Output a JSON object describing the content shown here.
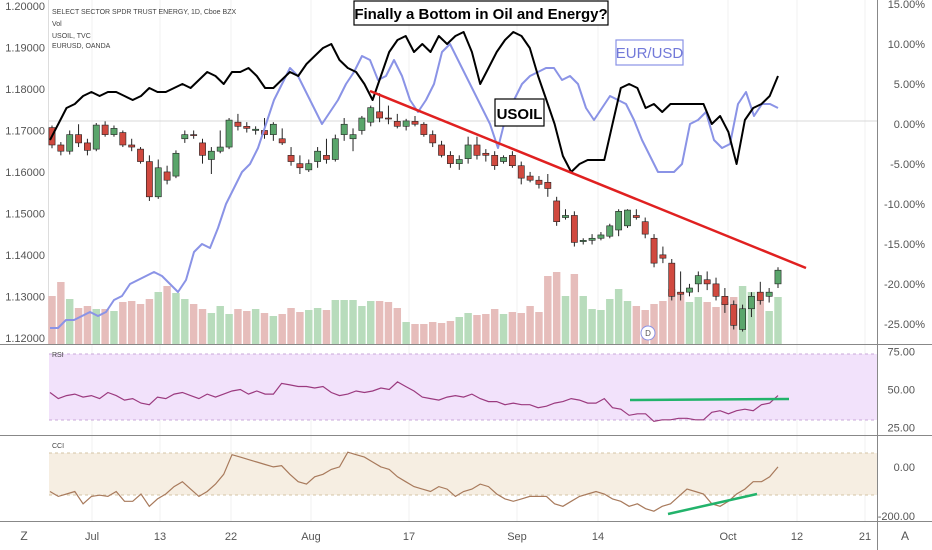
{
  "header": {
    "symbol_line": "SELECT SECTOR SPDR TRUST ENERGY, 1D, Cboe BZX",
    "vol_label": "Vol",
    "usoil_label": "USOIL, TVC",
    "eurusd_label": "EURUSD, OANDA"
  },
  "title": "Finally a Bottom in Oil and Energy?",
  "annotations": {
    "usoil": "USOIL",
    "eurusd": "EUR/USD"
  },
  "indicators": {
    "rsi_label": "RSI",
    "cci_label": "CCI"
  },
  "corner_buttons": {
    "left": "Z",
    "right": "A"
  },
  "dividend_marker": "D",
  "colors": {
    "up": "#5aa56b",
    "down": "#d0493f",
    "volume_up": "#b8dcbc",
    "volume_down": "#e6bdbb",
    "usoil": "#000000",
    "eurusd": "#8a93e6",
    "trendline": "#e02020",
    "divergence": "#22b36b",
    "rsi_line": "#9b3a7f",
    "rsi_band": "#f2e2fb",
    "cci_line": "#a87a5c",
    "cci_band": "#f6eee2"
  },
  "chart_data": {
    "type": "candlestick",
    "x_axis_labels": [
      "Jul",
      "13",
      "22",
      "Aug",
      "17",
      "Sep",
      "14",
      "Oct",
      "12",
      "21"
    ],
    "left_axis": {
      "ticks": [
        "1.20000",
        "1.19000",
        "1.18000",
        "1.17000",
        "1.16000",
        "1.15000",
        "1.14000",
        "1.13000",
        "1.12000"
      ],
      "range": [
        1.1185,
        1.2005
      ]
    },
    "right_axis": {
      "ticks": [
        "15.00%",
        "10.00%",
        "5.00%",
        "0.00%",
        "-5.00%",
        "-10.00%",
        "-15.00%",
        "-20.00%",
        "-25.00%"
      ],
      "range": [
        -27.5,
        15
      ]
    },
    "rsi_axis": {
      "ticks": [
        "75.00",
        "50.00",
        "25.00"
      ],
      "band": [
        30,
        70
      ],
      "range": [
        20,
        80
      ]
    },
    "cci_axis": {
      "ticks": [
        "0.00",
        "-200.00"
      ],
      "band": [
        -100,
        100
      ],
      "range": [
        -220,
        130
      ]
    },
    "candles": [
      [
        1.1707,
        1.1712,
        1.1657,
        1.1665
      ],
      [
        1.1665,
        1.1672,
        1.164,
        1.165
      ],
      [
        1.165,
        1.17,
        1.1642,
        1.169
      ],
      [
        1.169,
        1.1715,
        1.166,
        1.167
      ],
      [
        1.167,
        1.168,
        1.164,
        1.1652
      ],
      [
        1.1655,
        1.1718,
        1.165,
        1.1713
      ],
      [
        1.1713,
        1.1722,
        1.1685,
        1.169
      ],
      [
        1.169,
        1.1712,
        1.1685,
        1.1705
      ],
      [
        1.1695,
        1.17,
        1.166,
        1.1665
      ],
      [
        1.1665,
        1.168,
        1.165,
        1.166
      ],
      [
        1.1655,
        1.166,
        1.162,
        1.1625
      ],
      [
        1.1625,
        1.164,
        1.153,
        1.154
      ],
      [
        1.154,
        1.163,
        1.1535,
        1.161
      ],
      [
        1.16,
        1.1615,
        1.157,
        1.158
      ],
      [
        1.159,
        1.1652,
        1.1585,
        1.1645
      ],
      [
        1.168,
        1.17,
        1.167,
        1.169
      ],
      [
        1.169,
        1.17,
        1.168,
        1.1688
      ],
      [
        1.167,
        1.168,
        1.162,
        1.164
      ],
      [
        1.163,
        1.166,
        1.1595,
        1.165
      ],
      [
        1.165,
        1.17,
        1.1645,
        1.166
      ],
      [
        1.166,
        1.173,
        1.1655,
        1.1725
      ],
      [
        1.172,
        1.174,
        1.17,
        1.171
      ],
      [
        1.171,
        1.172,
        1.1695,
        1.1705
      ],
      [
        1.17,
        1.171,
        1.169,
        1.1703
      ],
      [
        1.17,
        1.173,
        1.168,
        1.169
      ],
      [
        1.169,
        1.172,
        1.1675,
        1.1715
      ],
      [
        1.168,
        1.1705,
        1.1665,
        1.167
      ],
      [
        1.164,
        1.166,
        1.1615,
        1.1625
      ],
      [
        1.162,
        1.164,
        1.1595,
        1.161
      ],
      [
        1.1605,
        1.163,
        1.16,
        1.162
      ],
      [
        1.1625,
        1.166,
        1.161,
        1.165
      ],
      [
        1.164,
        1.168,
        1.162,
        1.163
      ],
      [
        1.163,
        1.169,
        1.1625,
        1.168
      ],
      [
        1.169,
        1.173,
        1.1675,
        1.1715
      ],
      [
        1.168,
        1.1705,
        1.165,
        1.169
      ],
      [
        1.17,
        1.1735,
        1.169,
        1.173
      ],
      [
        1.172,
        1.176,
        1.171,
        1.1755
      ],
      [
        1.1745,
        1.179,
        1.172,
        1.173
      ],
      [
        1.173,
        1.176,
        1.1715,
        1.1728
      ],
      [
        1.1722,
        1.174,
        1.1705,
        1.171
      ],
      [
        1.171,
        1.1728,
        1.17,
        1.1723
      ],
      [
        1.1722,
        1.1735,
        1.171,
        1.1715
      ],
      [
        1.1715,
        1.172,
        1.1685,
        1.169
      ],
      [
        1.169,
        1.17,
        1.166,
        1.167
      ],
      [
        1.1665,
        1.1675,
        1.1635,
        1.164
      ],
      [
        1.164,
        1.165,
        1.161,
        1.162
      ],
      [
        1.162,
        1.164,
        1.1605,
        1.163
      ],
      [
        1.1632,
        1.1685,
        1.162,
        1.1665
      ],
      [
        1.1665,
        1.1685,
        1.163,
        1.164
      ],
      [
        1.1645,
        1.1655,
        1.1625,
        1.164
      ],
      [
        1.164,
        1.165,
        1.1605,
        1.1615
      ],
      [
        1.1625,
        1.164,
        1.162,
        1.1635
      ],
      [
        1.164,
        1.165,
        1.161,
        1.1615
      ],
      [
        1.1615,
        1.1625,
        1.157,
        1.1585
      ],
      [
        1.159,
        1.16,
        1.1575,
        1.158
      ],
      [
        1.158,
        1.159,
        1.156,
        1.157
      ],
      [
        1.1575,
        1.1595,
        1.154,
        1.156
      ],
      [
        1.153,
        1.154,
        1.147,
        1.148
      ],
      [
        1.149,
        1.151,
        1.1485,
        1.1495
      ],
      [
        1.1495,
        1.1505,
        1.142,
        1.143
      ],
      [
        1.1432,
        1.144,
        1.1425,
        1.1435
      ],
      [
        1.1435,
        1.145,
        1.1425,
        1.144
      ],
      [
        1.144,
        1.1455,
        1.1435,
        1.1448
      ],
      [
        1.1445,
        1.1475,
        1.144,
        1.147
      ],
      [
        1.146,
        1.151,
        1.1445,
        1.1505
      ],
      [
        1.147,
        1.151,
        1.1465,
        1.1508
      ],
      [
        1.1495,
        1.151,
        1.1485,
        1.149
      ],
      [
        1.148,
        1.149,
        1.144,
        1.145
      ],
      [
        1.144,
        1.145,
        1.137,
        1.138
      ],
      [
        1.14,
        1.142,
        1.138,
        1.1392
      ],
      [
        1.138,
        1.139,
        1.129,
        1.13
      ],
      [
        1.131,
        1.136,
        1.129,
        1.1305
      ],
      [
        1.131,
        1.133,
        1.13,
        1.132
      ],
      [
        1.133,
        1.136,
        1.131,
        1.135
      ],
      [
        1.134,
        1.136,
        1.1315,
        1.133
      ],
      [
        1.133,
        1.1345,
        1.129,
        1.13
      ],
      [
        1.13,
        1.132,
        1.126,
        1.128
      ],
      [
        1.128,
        1.129,
        1.122,
        1.123
      ],
      [
        1.122,
        1.128,
        1.1215,
        1.127
      ],
      [
        1.127,
        1.131,
        1.125,
        1.13
      ],
      [
        1.131,
        1.1335,
        1.128,
        1.129
      ],
      [
        1.13,
        1.132,
        1.1285,
        1.131
      ],
      [
        1.133,
        1.137,
        1.132,
        1.1363
      ]
    ],
    "volume": [
      0.48,
      0.62,
      0.45,
      0.36,
      0.38,
      0.35,
      0.35,
      0.33,
      0.42,
      0.43,
      0.4,
      0.45,
      0.52,
      0.58,
      0.51,
      0.45,
      0.4,
      0.35,
      0.31,
      0.38,
      0.3,
      0.35,
      0.33,
      0.35,
      0.31,
      0.28,
      0.3,
      0.36,
      0.32,
      0.34,
      0.36,
      0.34,
      0.44,
      0.44,
      0.44,
      0.38,
      0.43,
      0.43,
      0.42,
      0.36,
      0.22,
      0.2,
      0.2,
      0.22,
      0.21,
      0.23,
      0.27,
      0.31,
      0.29,
      0.3,
      0.35,
      0.3,
      0.32,
      0.31,
      0.38,
      0.32,
      0.68,
      0.72,
      0.48,
      0.7,
      0.48,
      0.35,
      0.34,
      0.45,
      0.55,
      0.43,
      0.38,
      0.34,
      0.4,
      0.43,
      0.55,
      0.52,
      0.42,
      0.47,
      0.42,
      0.37,
      0.42,
      0.47,
      0.58,
      0.52,
      0.44,
      0.33,
      0.47
    ],
    "usoil_pct": [
      -2,
      0,
      2,
      2.5,
      3.5,
      4,
      3.5,
      4,
      4,
      3.5,
      3,
      3.5,
      4.5,
      4,
      4,
      4.5,
      5,
      4.5,
      5.5,
      6.5,
      6,
      5,
      6.5,
      6.5,
      7,
      6,
      4.5,
      4.5,
      5.5,
      6.5,
      6,
      7.5,
      8.5,
      9.5,
      10,
      8,
      7,
      6.5,
      5,
      3,
      6,
      9,
      10.5,
      11,
      9,
      10,
      9,
      11,
      10,
      11,
      11.5,
      9,
      5,
      7,
      9,
      10.5,
      11.5,
      11,
      9.5,
      6,
      3,
      0,
      -4,
      -6,
      -5,
      -4.5,
      -4.5,
      -4.5,
      0,
      4.5,
      5,
      4.5,
      2,
      2.5,
      1.5,
      2.5,
      2.5,
      2.5,
      2.5,
      2.5,
      0,
      1,
      -1,
      -5,
      0.5,
      2,
      2.5,
      3.5,
      6
    ],
    "eurusd_pct": [
      -25.5,
      -25.5,
      -24.5,
      -24.5,
      -24,
      -23.5,
      -24,
      -23.5,
      -22,
      -21.5,
      -20,
      -19.5,
      -19,
      -18.5,
      -19,
      -20,
      -21,
      -19.5,
      -16,
      -15,
      -15.5,
      -13,
      -10,
      -8,
      -6,
      -5,
      -3,
      0,
      3,
      5,
      7,
      6,
      4,
      2,
      0,
      1.5,
      3,
      5,
      6.5,
      8.5,
      8,
      5.5,
      6,
      8,
      6,
      3,
      1.5,
      3,
      5,
      9,
      10,
      8,
      6,
      4,
      2,
      0,
      -3,
      1,
      3,
      5,
      6,
      6.5,
      7,
      7,
      5.5,
      6,
      5,
      2,
      0.5,
      2,
      3.5,
      3,
      2.5,
      0.5,
      -2,
      -4,
      -6,
      -6,
      -6,
      -5,
      0,
      0.5,
      1.5,
      -2,
      -3,
      -2.5,
      2.5,
      4,
      1,
      2.5,
      2.5,
      2
    ],
    "rsi": [
      48,
      44,
      46,
      47,
      45,
      46,
      44,
      48,
      46,
      43,
      44,
      41,
      40,
      45,
      44,
      47,
      48,
      46,
      44,
      47,
      45,
      47,
      49,
      50,
      47,
      49,
      47,
      47,
      54,
      53,
      52,
      52,
      51,
      52,
      48,
      46,
      47,
      49,
      48,
      49,
      51,
      50,
      55,
      52,
      49,
      45,
      44,
      43,
      45,
      46,
      45,
      47,
      44,
      42,
      42,
      40,
      41,
      40,
      40,
      38,
      39,
      41,
      42,
      44,
      43,
      41,
      41,
      44,
      38,
      37,
      33,
      34,
      34,
      29,
      30,
      30,
      31,
      31,
      30,
      30,
      35,
      36,
      34,
      36,
      37,
      36,
      40,
      41,
      46
    ],
    "cci": [
      -100,
      -120,
      -110,
      -100,
      -150,
      -120,
      -115,
      -120,
      -100,
      -140,
      -140,
      -110,
      -160,
      -130,
      -110,
      -80,
      -60,
      -90,
      -120,
      -100,
      -70,
      -30,
      50,
      40,
      30,
      20,
      10,
      0,
      5,
      -30,
      -60,
      -70,
      -40,
      -30,
      -10,
      0,
      60,
      50,
      40,
      20,
      0,
      -10,
      -40,
      -60,
      -80,
      -90,
      -100,
      -80,
      -90,
      -120,
      -100,
      -90,
      -70,
      -80,
      -110,
      -130,
      -140,
      -130,
      -120,
      -120,
      -120,
      -150,
      -160,
      -140,
      -120,
      -110,
      -100,
      -110,
      -130,
      -140,
      -160,
      -150,
      -170,
      -180,
      -160,
      -150,
      -120,
      -90,
      -100,
      -110,
      -150,
      -160,
      -140,
      -110,
      -90,
      -60,
      -60,
      -40,
      0
    ]
  }
}
